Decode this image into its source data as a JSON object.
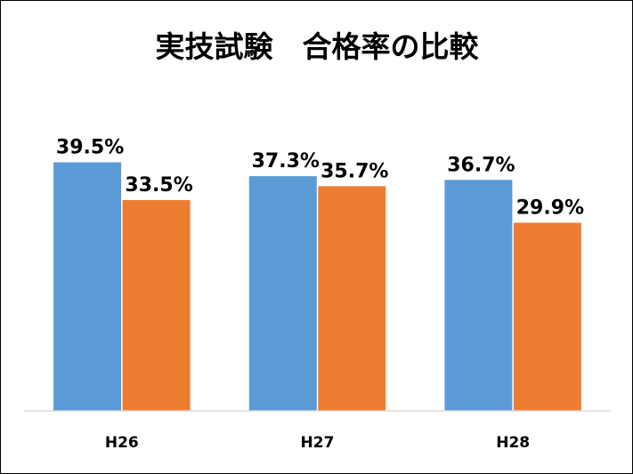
{
  "chart_data": {
    "type": "bar",
    "title": "実技試験　合格率の比較",
    "categories": [
      "H26",
      "H27",
      "H28"
    ],
    "series": [
      {
        "values": [
          39.5,
          37.3,
          36.7
        ],
        "labels": [
          "39.5%",
          "37.3%",
          "36.7%"
        ],
        "color": "#5B9BD5"
      },
      {
        "values": [
          33.5,
          35.7,
          29.9
        ],
        "labels": [
          "33.5%",
          "35.7%",
          "29.9%"
        ],
        "color": "#ED7D31"
      }
    ],
    "ylim": [
      0,
      45
    ],
    "grid": false,
    "legend": "none",
    "axis_color": "#D9D9D9"
  }
}
